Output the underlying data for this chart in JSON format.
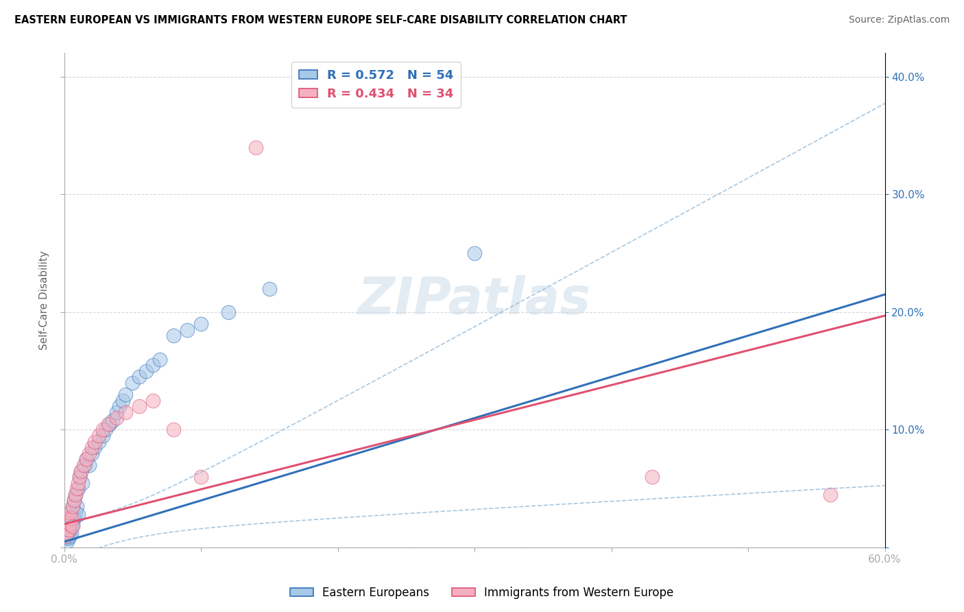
{
  "title": "EASTERN EUROPEAN VS IMMIGRANTS FROM WESTERN EUROPE SELF-CARE DISABILITY CORRELATION CHART",
  "source": "Source: ZipAtlas.com",
  "ylabel": "Self-Care Disability",
  "xlim": [
    0,
    0.6
  ],
  "ylim": [
    0,
    0.42
  ],
  "yticks": [
    0,
    0.1,
    0.2,
    0.3,
    0.4
  ],
  "ytick_labels": [
    "",
    "10.0%",
    "20.0%",
    "30.0%",
    "40.0%"
  ],
  "blue_R": 0.572,
  "blue_N": 54,
  "pink_R": 0.434,
  "pink_N": 34,
  "blue_color": "#A8C8E8",
  "pink_color": "#F4B0C0",
  "blue_line_color": "#3070B8",
  "pink_line_color": "#E05070",
  "legend_label_blue": "Eastern Europeans",
  "legend_label_pink": "Immigrants from Western Europe",
  "blue_scatter_x": [
    0.001,
    0.001,
    0.001,
    0.002,
    0.002,
    0.002,
    0.002,
    0.003,
    0.003,
    0.003,
    0.003,
    0.004,
    0.004,
    0.004,
    0.005,
    0.005,
    0.005,
    0.006,
    0.006,
    0.007,
    0.007,
    0.008,
    0.008,
    0.009,
    0.01,
    0.01,
    0.011,
    0.012,
    0.013,
    0.015,
    0.016,
    0.018,
    0.02,
    0.022,
    0.025,
    0.028,
    0.03,
    0.033,
    0.035,
    0.038,
    0.04,
    0.043,
    0.045,
    0.05,
    0.055,
    0.06,
    0.065,
    0.07,
    0.08,
    0.09,
    0.1,
    0.12,
    0.15,
    0.3
  ],
  "blue_scatter_y": [
    0.008,
    0.01,
    0.012,
    0.005,
    0.01,
    0.015,
    0.02,
    0.008,
    0.012,
    0.018,
    0.022,
    0.01,
    0.015,
    0.025,
    0.012,
    0.018,
    0.03,
    0.02,
    0.035,
    0.025,
    0.04,
    0.03,
    0.045,
    0.035,
    0.028,
    0.05,
    0.06,
    0.065,
    0.055,
    0.07,
    0.075,
    0.07,
    0.08,
    0.085,
    0.09,
    0.095,
    0.1,
    0.105,
    0.108,
    0.115,
    0.12,
    0.125,
    0.13,
    0.14,
    0.145,
    0.15,
    0.155,
    0.16,
    0.18,
    0.185,
    0.19,
    0.2,
    0.22,
    0.25
  ],
  "pink_scatter_x": [
    0.001,
    0.001,
    0.002,
    0.002,
    0.003,
    0.003,
    0.004,
    0.004,
    0.005,
    0.006,
    0.006,
    0.007,
    0.008,
    0.009,
    0.01,
    0.011,
    0.012,
    0.014,
    0.016,
    0.018,
    0.02,
    0.022,
    0.025,
    0.028,
    0.032,
    0.038,
    0.045,
    0.055,
    0.065,
    0.08,
    0.1,
    0.14,
    0.43,
    0.56
  ],
  "pink_scatter_y": [
    0.01,
    0.018,
    0.012,
    0.022,
    0.015,
    0.025,
    0.02,
    0.03,
    0.025,
    0.018,
    0.035,
    0.04,
    0.045,
    0.05,
    0.055,
    0.06,
    0.065,
    0.07,
    0.075,
    0.08,
    0.085,
    0.09,
    0.095,
    0.1,
    0.105,
    0.11,
    0.115,
    0.12,
    0.125,
    0.1,
    0.06,
    0.34,
    0.06,
    0.045
  ]
}
